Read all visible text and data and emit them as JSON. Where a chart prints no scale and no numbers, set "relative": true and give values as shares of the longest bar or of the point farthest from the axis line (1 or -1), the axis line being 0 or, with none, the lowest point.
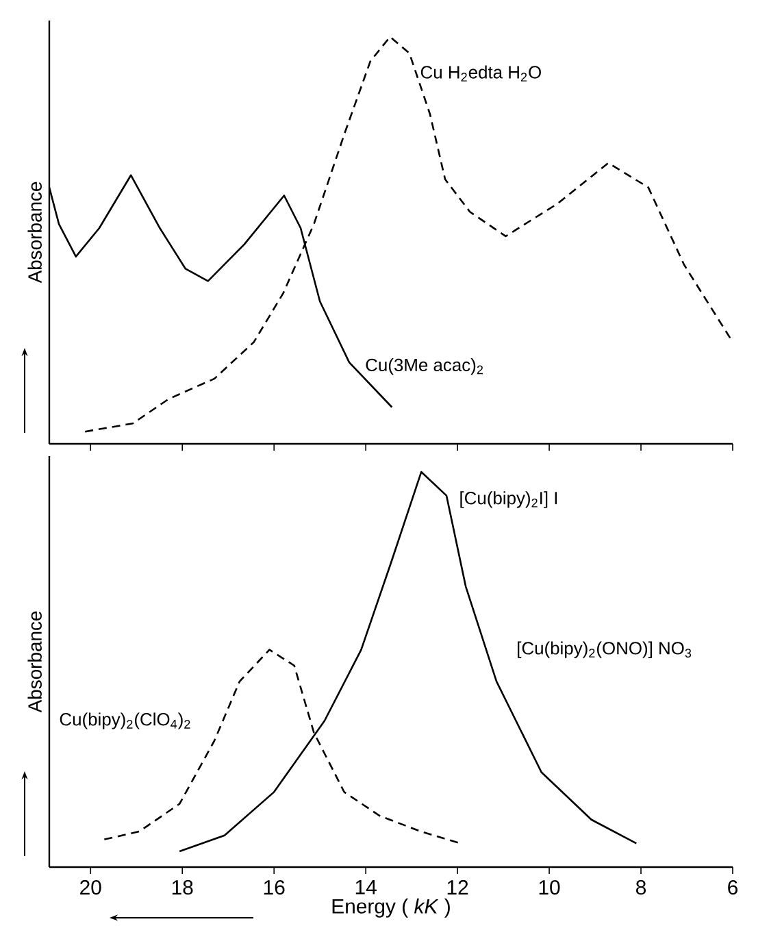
{
  "chart_data": [
    {
      "type": "line",
      "relative": true,
      "xlim": [
        20.9,
        6
      ],
      "xticks": [
        20,
        18,
        16,
        14,
        12,
        10,
        8,
        6
      ],
      "tick_labels": false,
      "ylabel": "Absorbance",
      "series": [
        {
          "name": "Cu(3Me acac)$_{2}$",
          "color": "#000000",
          "line_style": "solid",
          "x": [
            20.9,
            20.69,
            20.32,
            19.81,
            19.12,
            18.49,
            17.93,
            17.44,
            16.65,
            15.78,
            15.42,
            15.0,
            14.36,
            13.43
          ],
          "values": [
            0.63,
            0.54,
            0.46,
            0.53,
            0.66,
            0.53,
            0.43,
            0.4,
            0.49,
            0.61,
            0.53,
            0.35,
            0.2,
            0.09
          ]
        },
        {
          "name": "Cu H$_{2}$edta H$_{2}$O",
          "color": "#000000",
          "line_style": "dashed",
          "x": [
            20.12,
            19.08,
            18.3,
            17.3,
            16.44,
            15.8,
            15.13,
            14.47,
            13.9,
            13.47,
            13.05,
            12.6,
            12.27,
            11.73,
            10.95,
            9.82,
            8.71,
            7.84,
            7.06,
            6.0
          ],
          "values": [
            0.03,
            0.05,
            0.11,
            0.16,
            0.25,
            0.37,
            0.54,
            0.76,
            0.94,
            1.0,
            0.96,
            0.81,
            0.65,
            0.57,
            0.51,
            0.59,
            0.69,
            0.63,
            0.44,
            0.25
          ]
        }
      ]
    },
    {
      "type": "line",
      "relative": true,
      "xlim": [
        20.9,
        6
      ],
      "xticks": [
        20,
        18,
        16,
        14,
        12,
        10,
        8,
        6
      ],
      "tick_labels": "x",
      "ylabel": "Absorbance",
      "xlabel": "Energy ( *kK* )",
      "annotations": [
        "[Cu(bipy)$_{2}$(ONO)] NO$_{3}$"
      ],
      "series": [
        {
          "name": "[Cu(bipy)$_{2}$I] I",
          "color": "#000000",
          "line_style": "solid",
          "x": [
            18.06,
            17.08,
            16.0,
            14.9,
            14.1,
            13.45,
            12.79,
            12.24,
            11.82,
            11.15,
            10.17,
            9.08,
            8.1
          ],
          "values": [
            0.04,
            0.08,
            0.19,
            0.37,
            0.55,
            0.77,
            1.0,
            0.94,
            0.71,
            0.47,
            0.24,
            0.12,
            0.06
          ]
        },
        {
          "name": "Cu(bipy)$_{2}$(ClO$_{4}$)$_{2}$",
          "color": "#000000",
          "line_style": "dashed",
          "x": [
            19.7,
            18.94,
            18.06,
            17.3,
            16.75,
            16.1,
            15.56,
            15.13,
            14.47,
            13.7,
            12.8,
            11.93
          ],
          "values": [
            0.07,
            0.09,
            0.16,
            0.32,
            0.47,
            0.55,
            0.51,
            0.34,
            0.19,
            0.13,
            0.09,
            0.06
          ]
        }
      ]
    }
  ]
}
